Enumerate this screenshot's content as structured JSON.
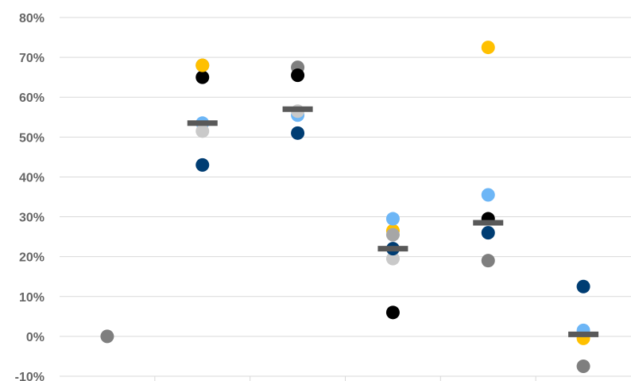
{
  "chart_data": {
    "type": "scatter",
    "title": "",
    "xlabel": "",
    "ylabel": "",
    "ylim": [
      -10,
      80
    ],
    "y_ticks": [
      80,
      70,
      60,
      50,
      40,
      30,
      20,
      10,
      0,
      -10
    ],
    "y_tick_labels": [
      "80%",
      "70%",
      "60%",
      "50%",
      "40%",
      "30%",
      "20%",
      "10%",
      "0%",
      "-10%"
    ],
    "grid": true,
    "legend": "none",
    "num_categories": 6,
    "series": [
      {
        "color": "#7f7f7f",
        "values": [
          0,
          68,
          67.5,
          null,
          19,
          -7.5
        ]
      },
      {
        "color": "#000000",
        "values": [
          null,
          65,
          65.5,
          6,
          29.5,
          null
        ]
      },
      {
        "color": "#ffc000",
        "values": [
          null,
          68,
          null,
          26.5,
          72.5,
          -0.5
        ]
      },
      {
        "color": "#6db6f6",
        "values": [
          null,
          53.5,
          55.5,
          29.5,
          35.5,
          1.5
        ]
      },
      {
        "color": "#c9c9c9",
        "values": [
          null,
          51.5,
          56.5,
          19.5,
          null,
          null
        ]
      },
      {
        "color": "#003d73",
        "values": [
          null,
          43,
          51,
          22,
          26,
          12.5
        ]
      },
      {
        "color": "#a6a6a6",
        "values": [
          null,
          null,
          null,
          25.5,
          null,
          null
        ]
      }
    ],
    "means": [
      null,
      53.5,
      57,
      22,
      28.5,
      0.5
    ],
    "mean_color": "#595959"
  }
}
